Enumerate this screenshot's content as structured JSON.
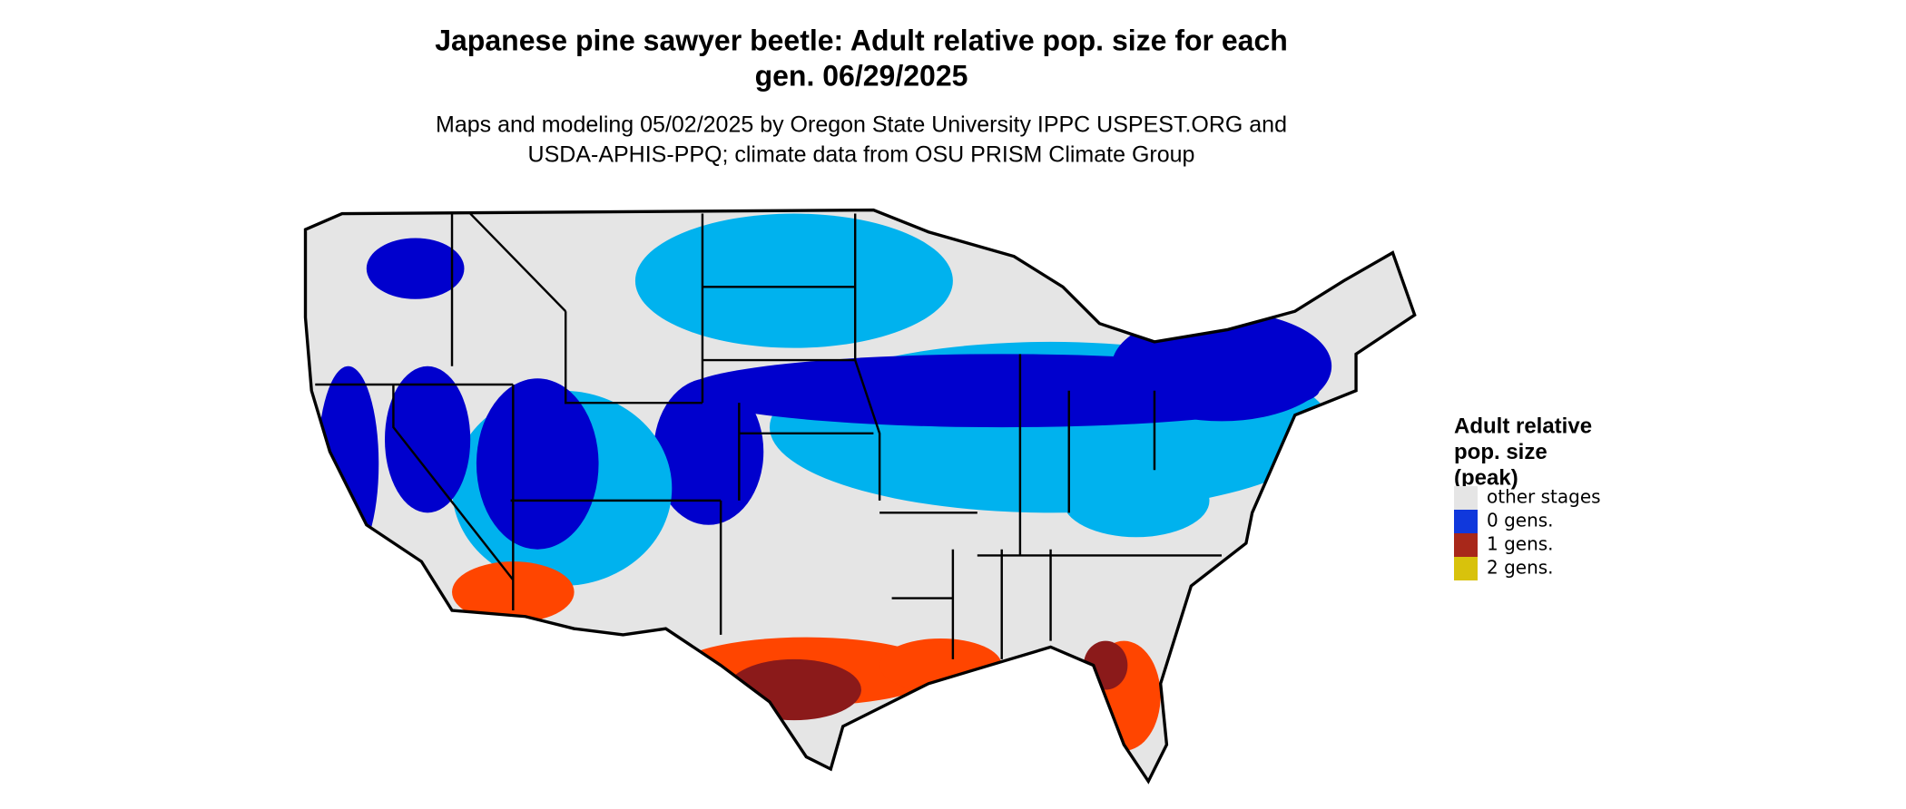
{
  "header": {
    "title": [
      "Japanese pine sawyer beetle: Adult relative pop. size for each",
      "gen. 06/29/2025"
    ],
    "subtitle": [
      "Maps and modeling 05/02/2025 by Oregon State University IPPC USPEST.ORG and",
      "USDA-APHIS-PPQ; climate data from OSU PRISM Climate Group"
    ]
  },
  "legend": {
    "title": [
      "Adult relative",
      "pop. size",
      "(peak)"
    ],
    "items": [
      {
        "label": "other stages",
        "color": "#e5e5e5"
      },
      {
        "label": "0 gens.",
        "color": "#1038dc"
      },
      {
        "label": "1 gens.",
        "color": "#a8281a"
      },
      {
        "label": "2 gens.",
        "color": "#d8c20c"
      }
    ]
  }
}
